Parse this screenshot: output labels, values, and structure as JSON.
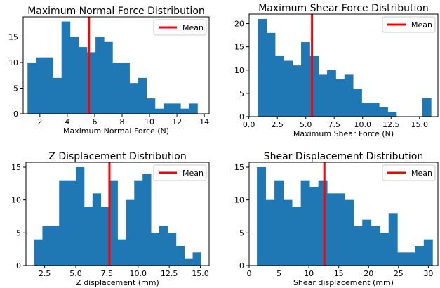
{
  "chart_data": [
    {
      "type": "bar",
      "title": "Maximum Normal Force Distribution",
      "xlabel": "Maximum Normal Force (N)",
      "ylabel": "",
      "xlim": [
        0.78,
        14.35
      ],
      "ylim": [
        0,
        18.9
      ],
      "bin_start": 1.1,
      "bin_width": 0.62,
      "values": [
        10,
        11,
        11,
        7,
        18,
        15,
        13,
        12,
        15,
        14,
        10,
        10,
        6,
        7,
        3,
        1,
        2,
        2,
        1,
        2
      ],
      "mean": 5.58,
      "x_ticks": [
        2,
        4,
        6,
        8,
        10,
        12,
        14
      ],
      "y_ticks": [
        0,
        5,
        10,
        15
      ],
      "legend": {
        "label": "Mean",
        "position": "upper-right"
      },
      "bar_color": "#1f77b4",
      "mean_color": "#ff0000"
    },
    {
      "type": "bar",
      "title": "Maximum Shear Force Distribution",
      "xlabel": "Maximum Shear Force (N)",
      "ylabel": "",
      "xlim": [
        0.02,
        16.62
      ],
      "ylim": [
        0,
        22.05
      ],
      "bin_start": 0.78,
      "bin_width": 0.762,
      "values": [
        21,
        18,
        13,
        12,
        11,
        16,
        13,
        9,
        10,
        8,
        9,
        6,
        3,
        3,
        2,
        1,
        0,
        0,
        0,
        4
      ],
      "mean": 5.55,
      "x_ticks": [
        0.0,
        2.5,
        5.0,
        7.5,
        10.0,
        12.5,
        15.0
      ],
      "x_tick_labels": [
        "0.0",
        "2.5",
        "5.0",
        "7.5",
        "10.0",
        "12.5",
        "15.0"
      ],
      "y_ticks": [
        0,
        5,
        10,
        15,
        20
      ],
      "legend": {
        "label": "Mean",
        "position": "upper-right"
      },
      "bar_color": "#1f77b4",
      "mean_color": "#ff0000"
    },
    {
      "type": "bar",
      "title": "Z Displacement Distribution",
      "xlabel": "Z displacement (mm)",
      "ylabel": "",
      "xlim": [
        1.0,
        15.7
      ],
      "ylim": [
        0,
        15.75
      ],
      "bin_start": 1.65,
      "bin_width": 0.67,
      "values": [
        4,
        6,
        6,
        13,
        13,
        15,
        9,
        11,
        9,
        13,
        4,
        10,
        13,
        14,
        5,
        6,
        5,
        3,
        1,
        2
      ],
      "mean": 7.7,
      "x_ticks": [
        2.5,
        5.0,
        7.5,
        10.0,
        12.5,
        15.0
      ],
      "x_tick_labels": [
        "2.5",
        "5.0",
        "7.5",
        "10.0",
        "12.5",
        "15.0"
      ],
      "y_ticks": [
        0,
        5,
        10,
        15
      ],
      "legend": {
        "label": "Mean",
        "position": "upper-right"
      },
      "bar_color": "#1f77b4",
      "mean_color": "#ff0000"
    },
    {
      "type": "bar",
      "title": "Shear Displacement Distribution",
      "xlabel": "Shear displacement (mm)",
      "ylabel": "",
      "xlim": [
        0,
        31.6
      ],
      "ylim": [
        0,
        15.75
      ],
      "bin_start": 1.3,
      "bin_width": 1.47,
      "values": [
        15,
        10,
        13,
        10,
        9,
        13,
        12,
        13,
        11,
        11,
        10,
        6,
        7,
        6,
        5,
        8,
        2,
        2,
        3,
        4
      ],
      "mean": 12.6,
      "x_ticks": [
        0,
        5,
        10,
        15,
        20,
        25,
        30
      ],
      "y_ticks": [
        0,
        5,
        10,
        15
      ],
      "legend": {
        "label": "Mean",
        "position": "upper-right"
      },
      "bar_color": "#1f77b4",
      "mean_color": "#ff0000"
    }
  ]
}
